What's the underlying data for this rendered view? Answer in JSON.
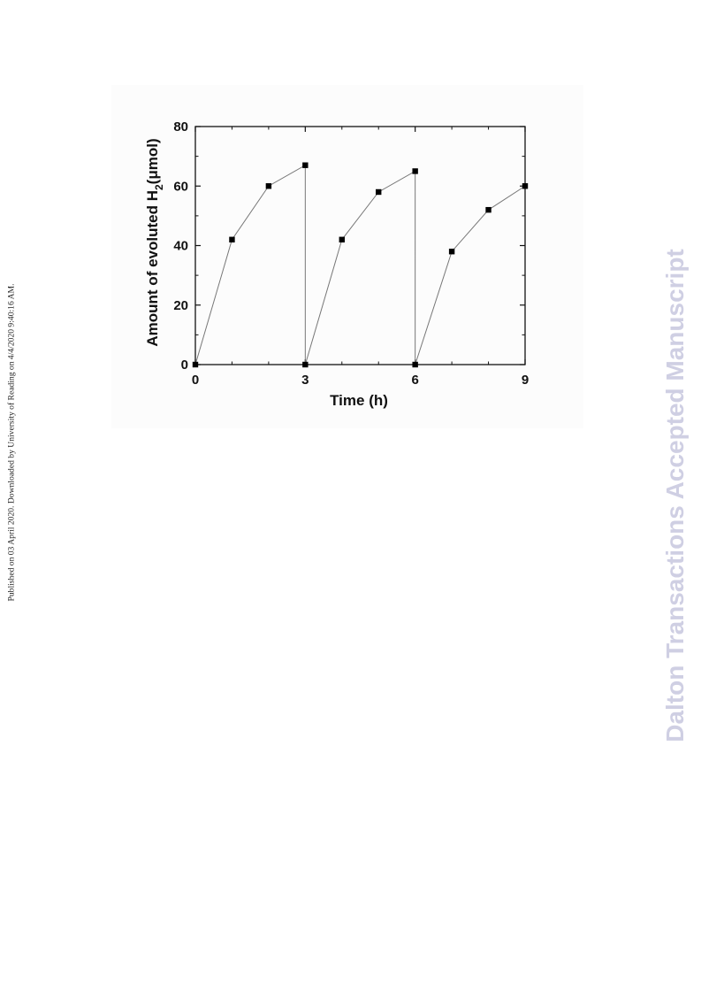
{
  "side_note": "Published on 03 April 2020. Downloaded by University of Reading on 4/4/2020 9:40:16 AM.",
  "watermark": {
    "text": "Dalton Transactions Accepted Manuscript",
    "color": "#cfcfe3"
  },
  "chart_data": {
    "type": "line",
    "title": "",
    "xlabel": "Time (h)",
    "ylabel": {
      "prefix": "Amount of evoluted H",
      "subscript": "2",
      "suffix": "(μmol)"
    },
    "xlim": [
      0,
      9
    ],
    "ylim": [
      0,
      80
    ],
    "x_ticks": [
      0,
      3,
      6,
      9
    ],
    "y_ticks": [
      0,
      20,
      40,
      60,
      80
    ],
    "grid": false,
    "legend": "none",
    "marker": "square",
    "line_color": "#777777",
    "marker_color": "#000000",
    "series": [
      {
        "x": [
          0,
          1,
          2,
          3,
          3,
          4,
          5,
          6,
          6,
          7,
          8,
          9
        ],
        "y": [
          0,
          42,
          60,
          67,
          0,
          42,
          58,
          65,
          0,
          38,
          52,
          60
        ]
      }
    ]
  }
}
